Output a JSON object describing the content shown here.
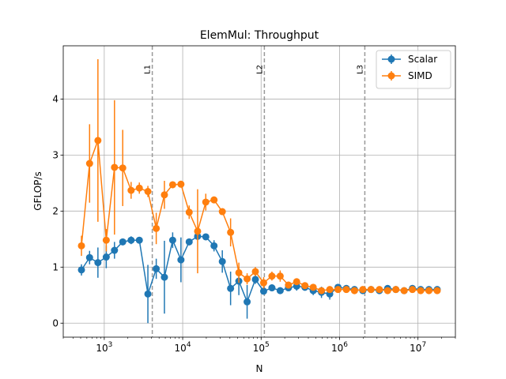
{
  "chart_data": {
    "type": "line",
    "title": "ElemMul: Throughput",
    "xlabel": "N",
    "ylabel": "GFLOP/s",
    "xscale": "log",
    "xlim": [
      300,
      30000000
    ],
    "ylim": [
      -0.25,
      4.95
    ],
    "grid": true,
    "legend_position": "top-right",
    "y_ticks": [
      0,
      1,
      2,
      3,
      4
    ],
    "y_tick_labels": [
      "0",
      "1",
      "2",
      "3",
      "4"
    ],
    "x_ticks": [
      1000,
      10000,
      100000,
      1000000,
      10000000
    ],
    "x_tick_exponents": [
      "3",
      "4",
      "5",
      "6",
      "7"
    ],
    "x_tick_base": "10",
    "vlines": [
      {
        "label": "L1",
        "x": 4096
      },
      {
        "label": "L2",
        "x": 110000
      },
      {
        "label": "L3",
        "x": 2100000
      }
    ],
    "x": [
      512,
      650,
      830,
      1060,
      1350,
      1720,
      2200,
      2800,
      3600,
      4600,
      5850,
      7450,
      9500,
      12100,
      15500,
      19700,
      25100,
      32000,
      40800,
      52000,
      66300,
      84500,
      107700,
      137300,
      175000,
      223000,
      284000,
      362000,
      461500,
      588000,
      750000,
      956000,
      1220000,
      1550000,
      1980000,
      2520000,
      3220000,
      4100000,
      5220000,
      6660000,
      8490000,
      10820000,
      13790000,
      17580000
    ],
    "series": [
      {
        "name": "Scalar",
        "color": "#1f77b4",
        "y": [
          0.95,
          1.17,
          1.08,
          1.18,
          1.3,
          1.45,
          1.48,
          1.48,
          0.52,
          0.97,
          0.82,
          1.48,
          1.13,
          1.45,
          1.55,
          1.54,
          1.38,
          1.1,
          0.62,
          0.75,
          0.38,
          0.78,
          0.57,
          0.63,
          0.58,
          0.63,
          0.66,
          0.64,
          0.58,
          0.55,
          0.52,
          0.64,
          0.62,
          0.6,
          0.58,
          0.6,
          0.58,
          0.62,
          0.6,
          0.58,
          0.62,
          0.6,
          0.6,
          0.6
        ],
        "err": [
          0.1,
          0.12,
          0.27,
          0.2,
          0.15,
          0.06,
          0.07,
          0.05,
          0.52,
          0.18,
          0.65,
          0.14,
          0.4,
          0.06,
          0.05,
          0.05,
          0.1,
          0.2,
          0.3,
          0.25,
          0.3,
          0.08,
          0.06,
          0.06,
          0.06,
          0.05,
          0.08,
          0.06,
          0.08,
          0.1,
          0.1,
          0.06,
          0.05,
          0.05,
          0.05,
          0.04,
          0.05,
          0.05,
          0.04,
          0.04,
          0.05,
          0.04,
          0.04,
          0.04
        ]
      },
      {
        "name": "SIMD",
        "color": "#ff7f0e",
        "y": [
          1.38,
          2.85,
          3.26,
          1.48,
          2.78,
          2.77,
          2.37,
          2.41,
          2.35,
          1.69,
          2.29,
          2.47,
          2.48,
          1.98,
          1.64,
          2.16,
          2.2,
          1.99,
          1.62,
          0.9,
          0.79,
          0.92,
          0.72,
          0.84,
          0.84,
          0.68,
          0.74,
          0.67,
          0.64,
          0.58,
          0.6,
          0.6,
          0.6,
          0.58,
          0.6,
          0.6,
          0.6,
          0.58,
          0.6,
          0.58,
          0.6,
          0.58,
          0.58,
          0.58
        ],
        "err": [
          0.18,
          0.7,
          1.45,
          0.2,
          1.2,
          0.68,
          0.15,
          0.1,
          0.1,
          0.28,
          0.25,
          0.06,
          0.05,
          0.12,
          0.75,
          0.15,
          0.05,
          0.05,
          0.25,
          0.18,
          0.1,
          0.08,
          0.1,
          0.08,
          0.1,
          0.06,
          0.06,
          0.05,
          0.05,
          0.04,
          0.04,
          0.04,
          0.04,
          0.04,
          0.04,
          0.04,
          0.04,
          0.04,
          0.04,
          0.04,
          0.04,
          0.04,
          0.04,
          0.04
        ]
      }
    ]
  }
}
